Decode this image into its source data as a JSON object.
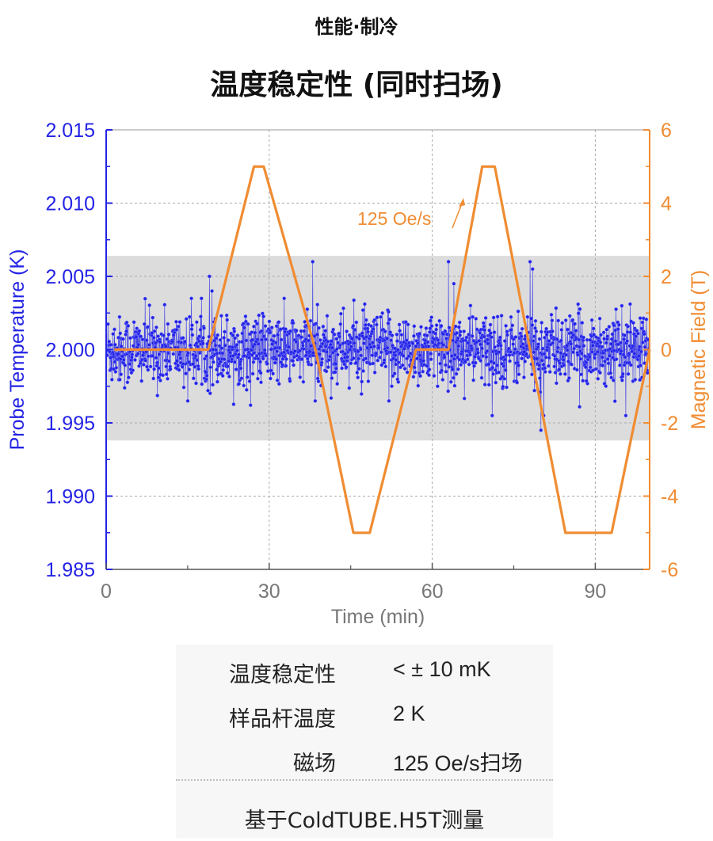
{
  "header": {
    "eyebrow": "性能·制冷",
    "title": "温度稳定性 (同时扫场)"
  },
  "chart_data": {
    "type": "line",
    "title": "温度稳定性 (同时扫场)",
    "xlabel": "Time (min)",
    "ylabel": "Probe Temperature (K)",
    "y2label": "Magnetic Field (T)",
    "xlim": [
      0,
      100
    ],
    "ylim": [
      1.985,
      2.015
    ],
    "y2lim": [
      -6,
      6
    ],
    "x_ticks": [
      0,
      30,
      60,
      90
    ],
    "y_ticks": [
      "2.015",
      "2.010",
      "2.005",
      "2.000",
      "1.995",
      "1.990",
      "1.985"
    ],
    "y2_ticks": [
      "6",
      "4",
      "2",
      "0",
      "-2",
      "-4",
      "-6"
    ],
    "grid": true,
    "band": {
      "ymin": 1.9938,
      "ymax": 2.0064,
      "color": "#d8d8d8"
    },
    "annotation": {
      "text": "125 Oe/s",
      "color": "#f08c32"
    },
    "colors": {
      "temperature": "#2323e6",
      "field": "#f08c32",
      "band": "#d8d8d8"
    },
    "series": [
      {
        "name": "Probe Temperature",
        "axis": "left",
        "style": "line+markers",
        "noise_sd": 0.0012,
        "points": 1500,
        "spikes": [
          {
            "x": 19,
            "y": 2.005
          },
          {
            "x": 19.5,
            "y": 2.004
          },
          {
            "x": 38,
            "y": 2.006
          },
          {
            "x": 38.5,
            "y": 1.9965
          },
          {
            "x": 63,
            "y": 2.006
          },
          {
            "x": 64,
            "y": 2.0045
          },
          {
            "x": 61,
            "y": 1.9975
          },
          {
            "x": 78,
            "y": 2.006
          },
          {
            "x": 78.5,
            "y": 2.0055
          },
          {
            "x": 80,
            "y": 1.9945
          },
          {
            "x": 80.5,
            "y": 1.9955
          },
          {
            "x": 71,
            "y": 1.9955
          },
          {
            "x": 52,
            "y": 1.9965
          },
          {
            "x": 15,
            "y": 1.9965
          }
        ]
      },
      {
        "name": "Magnetic Field",
        "axis": "right",
        "x": [
          1.5,
          18.8,
          27.2,
          29,
          38.5,
          45.5,
          48.5,
          57,
          63,
          69.2,
          71.5,
          84.5,
          93,
          100
        ],
        "y": [
          0,
          0,
          5,
          5,
          0,
          -5,
          -5,
          0,
          0,
          5,
          5,
          -5,
          -5,
          0
        ]
      }
    ]
  },
  "specs": {
    "rows": [
      {
        "label": "温度稳定性",
        "value": "< ± 10 mK"
      },
      {
        "label": "样品杆温度",
        "value": "2 K"
      },
      {
        "label": "磁场",
        "value": "125 Oe/s扫场"
      }
    ],
    "footer": "基于ColdTUBE.H5T测量"
  }
}
